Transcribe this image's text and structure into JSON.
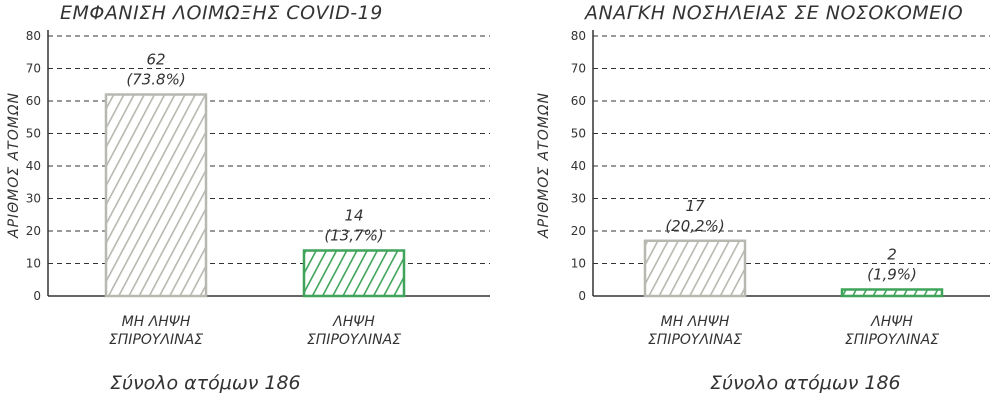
{
  "charts": [
    {
      "title": "ΕΜΦΑΝΙΣΗ ΛΟΙΜΩΞΗΣ COVID-19",
      "footer": "Σύνολο ατόμων 186"
    },
    {
      "title": "ΑΝΑΓΚΗ ΝΟΣΗΛΕΙΑΣ ΣΕ ΝΟΣΟΚΟΜΕΙΟ",
      "footer": "Σύνολο ατόμων 186"
    }
  ],
  "chart_data": [
    {
      "type": "bar",
      "title": "ΕΜΦΑΝΙΣΗ ΛΟΙΜΩΞΗΣ COVID-19",
      "ylabel": "ΑΡΙΘΜΟΣ ΑΤΟΜΩΝ",
      "xlabel": "",
      "ylim": [
        0,
        80
      ],
      "yticks": [
        "0",
        "10",
        "20",
        "30",
        "40",
        "50",
        "60",
        "70",
        "80"
      ],
      "grid": true,
      "categories": [
        [
          "ΜΗ ΛΗΨΗ",
          "ΣΠΙΡΟΥΛΙΝΑΣ"
        ],
        [
          "ΛΗΨΗ",
          "ΣΠΙΡΟΥΛΙΝΑΣ"
        ]
      ],
      "values": [
        62,
        14
      ],
      "value_labels": [
        "62",
        "14"
      ],
      "percent_labels": [
        "(73.8%)",
        "(13,7%)"
      ],
      "colors": [
        "#b8b8b0",
        "#3fa45a"
      ]
    },
    {
      "type": "bar",
      "title": "ΑΝΑΓΚΗ ΝΟΣΗΛΕΙΑΣ ΣΕ ΝΟΣΟΚΟΜΕΙΟ",
      "ylabel": "ΑΡΙΘΜΟΣ ΑΤΟΜΩΝ",
      "xlabel": "",
      "ylim": [
        0,
        80
      ],
      "yticks": [
        "0",
        "10",
        "20",
        "30",
        "40",
        "50",
        "60",
        "70",
        "80"
      ],
      "grid": true,
      "categories": [
        [
          "ΜΗ ΛΗΨΗ",
          "ΣΠΙΡΟΥΛΙΝΑΣ"
        ],
        [
          "ΛΗΨΗ",
          "ΣΠΙΡΟΥΛΙΝΑΣ"
        ]
      ],
      "values": [
        17,
        2
      ],
      "value_labels": [
        "17",
        "2"
      ],
      "percent_labels": [
        "(20,2%)",
        "(1,9%)"
      ],
      "colors": [
        "#b8b8b0",
        "#3fa45a"
      ]
    }
  ]
}
